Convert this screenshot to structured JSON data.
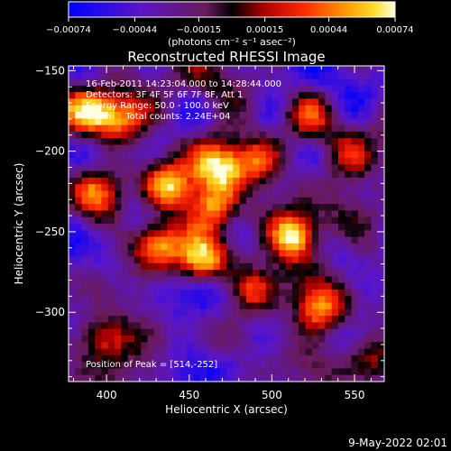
{
  "chart_data": {
    "type": "heatmap",
    "title": "Reconstructed RHESSI Image",
    "xlabel": "Heliocentric X (arcsec)",
    "ylabel": "Heliocentric Y (arcsec)",
    "xlim": [
      377,
      568
    ],
    "ylim": [
      -343,
      -147
    ],
    "x_ticks": [
      400,
      450,
      500,
      550
    ],
    "y_ticks": [
      -150,
      -200,
      -250,
      -300
    ],
    "x_tick_labels": [
      "400",
      "450",
      "500",
      "550"
    ],
    "y_tick_labels": [
      "−150",
      "−200",
      "−250",
      "−300"
    ],
    "colorbar": {
      "min": -0.00074,
      "max": 0.00074,
      "ticks": [
        -0.00074,
        -0.00044,
        -0.00015,
        0.00015,
        0.00044,
        0.00074
      ],
      "tick_labels": [
        "−0.00074",
        "−0.00044",
        "−0.00015",
        "0.00015",
        "0.00044",
        "0.00074"
      ],
      "unit_label": "(photons cm⁻² s⁻¹ asec⁻²)",
      "colormap": "blue-purple-red-orange-yellow-white"
    },
    "annotations": [
      "16-Feb-2011 14:23:04.000 to 14:28:44.000",
      "Detectors: 3F 4F 5F 6F 7F 8F, Att 1",
      "Energy Range: 50.0 - 100.0 keV",
      "Clean     Total counts: 2.24E+04"
    ],
    "peak_label": "Position of Peak = [514,-252]",
    "peak": {
      "x": 514,
      "y": -252
    },
    "hot_spots": [
      {
        "x": 514,
        "y": -252,
        "value": 0.00074
      },
      {
        "x": 465,
        "y": -235,
        "value": 0.00068
      },
      {
        "x": 437,
        "y": -222,
        "value": 0.00062
      },
      {
        "x": 458,
        "y": -268,
        "value": 0.00064
      },
      {
        "x": 430,
        "y": -258,
        "value": 0.00052
      },
      {
        "x": 392,
        "y": -175,
        "value": 0.0005
      },
      {
        "x": 410,
        "y": -180,
        "value": 0.0004
      },
      {
        "x": 468,
        "y": -210,
        "value": 0.0004
      },
      {
        "x": 492,
        "y": -205,
        "value": 0.00032
      },
      {
        "x": 488,
        "y": -287,
        "value": 0.0003
      },
      {
        "x": 530,
        "y": -300,
        "value": 0.0003
      },
      {
        "x": 398,
        "y": -315,
        "value": 0.00032
      },
      {
        "x": 395,
        "y": -225,
        "value": 0.00034
      },
      {
        "x": 545,
        "y": -205,
        "value": 0.0002
      },
      {
        "x": 560,
        "y": -330,
        "value": 0.00025
      },
      {
        "x": 520,
        "y": -180,
        "value": 0.00018
      }
    ],
    "grid": false
  },
  "footer": {
    "timestamp": "9-May-2022 02:01"
  }
}
